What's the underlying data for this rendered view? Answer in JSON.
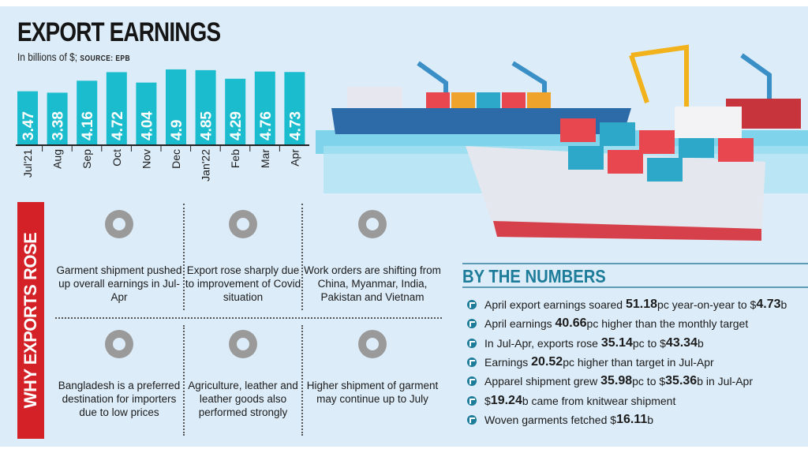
{
  "title": "EXPORT EARNINGS",
  "subtitle": "In billions of $;",
  "source": "SOURCE: EPB",
  "chart_data": {
    "type": "bar",
    "title": "EXPORT EARNINGS",
    "ylabel": "In billions of $",
    "categories": [
      "Jul'21",
      "Aug",
      "Sep",
      "Oct",
      "Nov",
      "Dec",
      "Jan'22",
      "Feb",
      "Mar",
      "Apr"
    ],
    "values": [
      3.47,
      3.38,
      4.16,
      4.72,
      4.04,
      4.9,
      4.85,
      4.29,
      4.76,
      4.73
    ],
    "ylim": [
      0,
      5
    ],
    "grid": false,
    "bar_color": "#1bbccd",
    "data_labels": [
      "3.47",
      "3.38",
      "4.16",
      "4.72",
      "4.04",
      "4.9",
      "4.85",
      "4.29",
      "4.76",
      "4.73"
    ]
  },
  "why": {
    "heading": "WHY EXPORTS ROSE",
    "reasons": [
      {
        "icon": "shirt-icon",
        "text": "Garment shipment pushed up overall earnings in Jul-Apr"
      },
      {
        "icon": "virus-icon",
        "text": "Export rose sharply due to improvement of Covid situation"
      },
      {
        "icon": "clipboard-icon",
        "text": "Work orders are shifting from China, Myanmar, India, Pakistan and Vietnam"
      },
      {
        "icon": "dollar-down-icon",
        "text": "Bangladesh is a preferred destination for importers due to low prices"
      },
      {
        "icon": "leather-bag-icon",
        "text": "Agriculture, leather and leather goods also performed strongly"
      },
      {
        "icon": "growth-chart-icon",
        "text": "Higher shipment of garment may continue up to July"
      }
    ]
  },
  "numbers": {
    "heading": "BY THE NUMBERS",
    "items": [
      [
        {
          "t": "April export earnings soared "
        },
        {
          "t": "51.18",
          "b": 1
        },
        {
          "t": "pc year-on-year to $"
        },
        {
          "t": "4.73",
          "b": 1
        },
        {
          "t": "b"
        }
      ],
      [
        {
          "t": "April earnings "
        },
        {
          "t": "40.66",
          "b": 1
        },
        {
          "t": "pc higher than the monthly target"
        }
      ],
      [
        {
          "t": "In Jul-Apr, exports rose "
        },
        {
          "t": "35.14",
          "b": 1
        },
        {
          "t": "pc to $"
        },
        {
          "t": "43.34",
          "b": 1
        },
        {
          "t": "b"
        }
      ],
      [
        {
          "t": "Earnings "
        },
        {
          "t": "20.52",
          "b": 1
        },
        {
          "t": "pc higher than target in Jul-Apr"
        }
      ],
      [
        {
          "t": "Apparel shipment grew "
        },
        {
          "t": "35.98",
          "b": 1
        },
        {
          "t": "pc to $"
        },
        {
          "t": "35.36",
          "b": 1
        },
        {
          "t": "b in Jul-Apr"
        }
      ],
      [
        {
          "t": "$"
        },
        {
          "t": "19.24",
          "b": 1
        },
        {
          "t": "b came from knitwear shipment"
        }
      ],
      [
        {
          "t": "Woven garments fetched $"
        },
        {
          "t": "16.11",
          "b": 1
        },
        {
          "t": "b"
        }
      ]
    ]
  },
  "colors": {
    "accent": "#1bbccd",
    "banner": "#d42128",
    "heading": "#1d7c99",
    "background": "#dcecf8"
  }
}
